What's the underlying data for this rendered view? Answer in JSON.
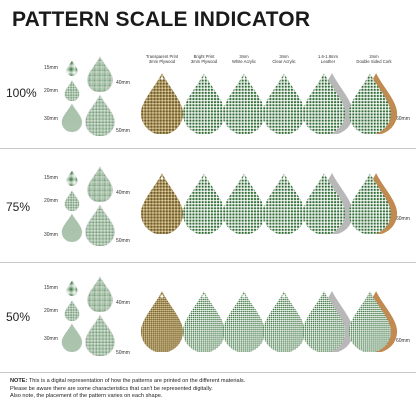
{
  "title": "PATTERN SCALE INDICATOR",
  "materials": [
    {
      "line1": "Transparent Print",
      "line2": "3mm Plywood"
    },
    {
      "line1": "Bright Print",
      "line2": "3mm Plywood"
    },
    {
      "line1": "3mm",
      "line2": "White Acrylic"
    },
    {
      "line1": "3mm",
      "line2": "Clear Acrylic"
    },
    {
      "line1": "1.6-1.8mm",
      "line2": "Leather"
    },
    {
      "line1": "2mm",
      "line2": "Double Sided Cork"
    }
  ],
  "sizes": {
    "s15": "15mm",
    "s20": "20mm",
    "s30": "30mm",
    "s40": "40mm",
    "s50": "50mm",
    "s60": "60mm"
  },
  "rows": [
    {
      "scale": "100%"
    },
    {
      "scale": "75%"
    },
    {
      "scale": "50%"
    }
  ],
  "note": {
    "bold": "NOTE:",
    "line1": " This is a digital representation of how the patterns are printed on the different materials.",
    "line2": "Please be aware there are some characteristics that can't be represented digitally.",
    "line3": "Also note, the placement of the pattern varies on each shape."
  },
  "colors": {
    "green": "#2f6b34",
    "dark_green": "#1f4f24",
    "wood": "#8a6a3a",
    "cork": "#c08a50",
    "leather": "#b8b8b8"
  }
}
